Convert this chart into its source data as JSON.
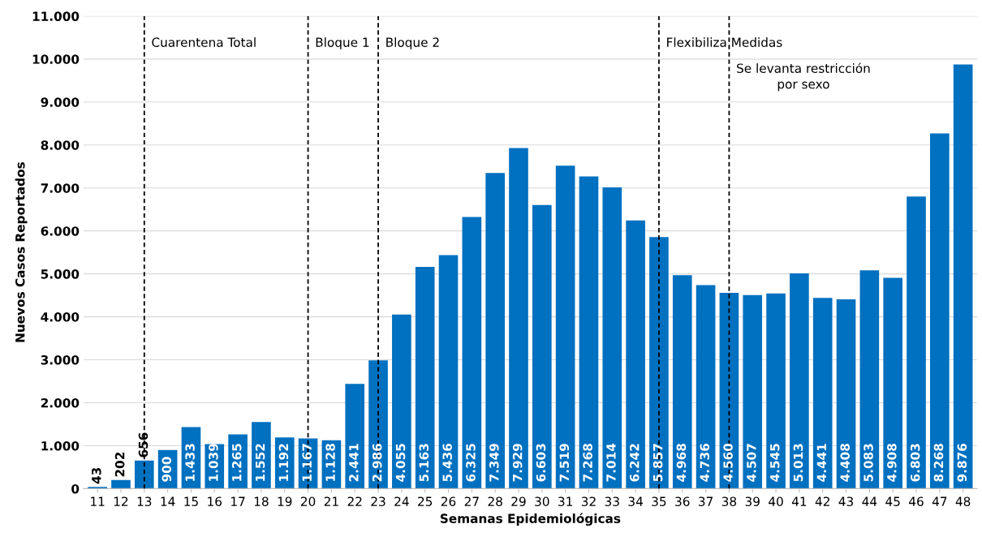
{
  "chart_data": {
    "type": "bar",
    "xlabel": "Semanas Epidemiológicas",
    "ylabel": "Nuevos Casos Reportados",
    "categories": [
      "11",
      "12",
      "13",
      "14",
      "15",
      "16",
      "17",
      "18",
      "19",
      "20",
      "21",
      "22",
      "23",
      "24",
      "25",
      "26",
      "27",
      "28",
      "29",
      "30",
      "31",
      "32",
      "33",
      "34",
      "35",
      "36",
      "37",
      "38",
      "39",
      "40",
      "41",
      "42",
      "43",
      "44",
      "45",
      "46",
      "47",
      "48"
    ],
    "values": [
      43,
      202,
      656,
      900,
      1433,
      1039,
      1265,
      1552,
      1192,
      1167,
      1128,
      2441,
      2986,
      4055,
      5163,
      5436,
      6325,
      7349,
      7929,
      6603,
      7519,
      7268,
      7014,
      6242,
      5857,
      4968,
      4736,
      4560,
      4507,
      4545,
      5013,
      4441,
      4408,
      5083,
      4908,
      6803,
      8268,
      9876
    ],
    "value_labels": [
      "43",
      "202",
      "656",
      "900",
      "1.433",
      "1.039",
      "1.265",
      "1.552",
      "1.192",
      "1.167",
      "1.128",
      "2.441",
      "2.986",
      "4.055",
      "5.163",
      "5.436",
      "6.325",
      "7.349",
      "7.929",
      "6.603",
      "7.519",
      "7.268",
      "7.014",
      "6.242",
      "5.857",
      "4.968",
      "4.736",
      "4.560",
      "4.507",
      "4.545",
      "5.013",
      "4.441",
      "4.408",
      "5.083",
      "4.908",
      "6.803",
      "8.268",
      "9.876"
    ],
    "color": "#0070c0",
    "ylim": [
      0,
      11000
    ],
    "yticks": [
      0,
      {
        "value": 1000,
        "label": "1.000"
      },
      {
        "value": 2000,
        "label": "2.000"
      },
      {
        "value": 3000,
        "label": "3.000"
      },
      {
        "value": 4000,
        "label": "4.000"
      },
      {
        "value": 5000,
        "label": "5.000"
      },
      {
        "value": 6000,
        "label": "6.000"
      },
      {
        "value": 7000,
        "label": "7.000"
      },
      {
        "value": 8000,
        "label": "8.000"
      },
      {
        "value": 9000,
        "label": "9.000"
      },
      {
        "value": 10000,
        "label": "10.000"
      },
      {
        "value": 11000,
        "label": "11.000"
      }
    ],
    "grid": "y",
    "ref_lines": [
      {
        "axis": "x",
        "value": "13",
        "label": "Cuarentena Total",
        "color": "#000000",
        "line_style": "dashed"
      },
      {
        "axis": "x",
        "value": "20",
        "label": "Bloque 1",
        "color": "#000000",
        "line_style": "dashed"
      },
      {
        "axis": "x",
        "value": "23",
        "label": "Bloque 2",
        "color": "#000000",
        "line_style": "dashed"
      },
      {
        "axis": "x",
        "value": "35",
        "label": "Flexibiliza Medidas",
        "color": "#000000",
        "line_style": "dashed"
      },
      {
        "axis": "x",
        "value": "38",
        "label": "Se levanta restricción\npor sexo",
        "color": "#000000",
        "line_style": "dashed"
      }
    ]
  }
}
